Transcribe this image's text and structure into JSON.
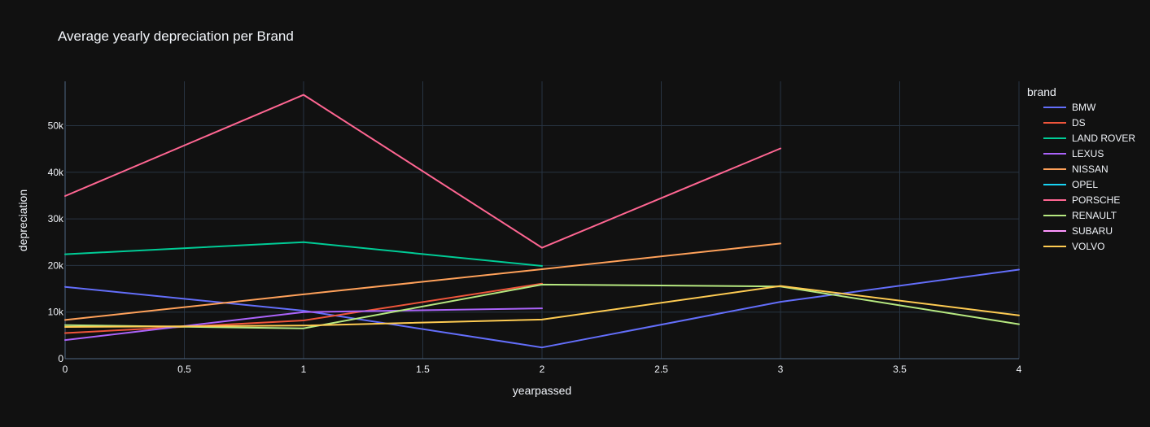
{
  "chart_data": {
    "type": "line",
    "title": "Average yearly depreciation per Brand",
    "xlabel": "yearpassed",
    "ylabel": "depreciation",
    "xlim": [
      0,
      4
    ],
    "ylim": [
      0,
      59500
    ],
    "x_ticks": [
      0,
      0.5,
      1,
      1.5,
      2,
      2.5,
      3,
      3.5,
      4
    ],
    "x_tick_labels": [
      "0",
      "0.5",
      "1",
      "1.5",
      "2",
      "2.5",
      "3",
      "3.5",
      "4"
    ],
    "y_ticks": [
      0,
      10000,
      20000,
      30000,
      40000,
      50000
    ],
    "y_tick_labels": [
      "0",
      "10k",
      "20k",
      "30k",
      "40k",
      "50k"
    ],
    "grid": true,
    "legend_title": "brand",
    "legend_position": "right",
    "series": [
      {
        "name": "BMW",
        "color": "#636efa",
        "x": [
          0,
          1,
          2,
          3,
          4
        ],
        "y": [
          15400,
          10300,
          2400,
          12200,
          19100
        ]
      },
      {
        "name": "DS",
        "color": "#EF553B",
        "x": [
          0,
          1,
          2
        ],
        "y": [
          5500,
          8200,
          16100
        ]
      },
      {
        "name": "LAND ROVER",
        "color": "#00cc96",
        "x": [
          0,
          1,
          2
        ],
        "y": [
          22400,
          25000,
          19900
        ]
      },
      {
        "name": "LEXUS",
        "color": "#ab63fa",
        "x": [
          0,
          1,
          2
        ],
        "y": [
          4000,
          10000,
          10800
        ]
      },
      {
        "name": "NISSAN",
        "color": "#FFA15A",
        "x": [
          0,
          1,
          2,
          3
        ],
        "y": [
          8300,
          13800,
          19200,
          24700
        ]
      },
      {
        "name": "OPEL",
        "color": "#19d3f3",
        "x": [],
        "y": []
      },
      {
        "name": "PORSCHE",
        "color": "#FF6692",
        "x": [
          0,
          1,
          2,
          3
        ],
        "y": [
          34900,
          56600,
          23800,
          45100
        ]
      },
      {
        "name": "RENAULT",
        "color": "#B6E880",
        "x": [
          0,
          1,
          2,
          3,
          4
        ],
        "y": [
          7200,
          6500,
          15900,
          15500,
          7400
        ]
      },
      {
        "name": "SUBARU",
        "color": "#FF97FF",
        "x": [],
        "y": []
      },
      {
        "name": "VOLVO",
        "color": "#FECB52",
        "x": [
          0,
          1,
          2,
          3,
          4
        ],
        "y": [
          6800,
          7100,
          8400,
          15600,
          9300
        ]
      }
    ]
  }
}
